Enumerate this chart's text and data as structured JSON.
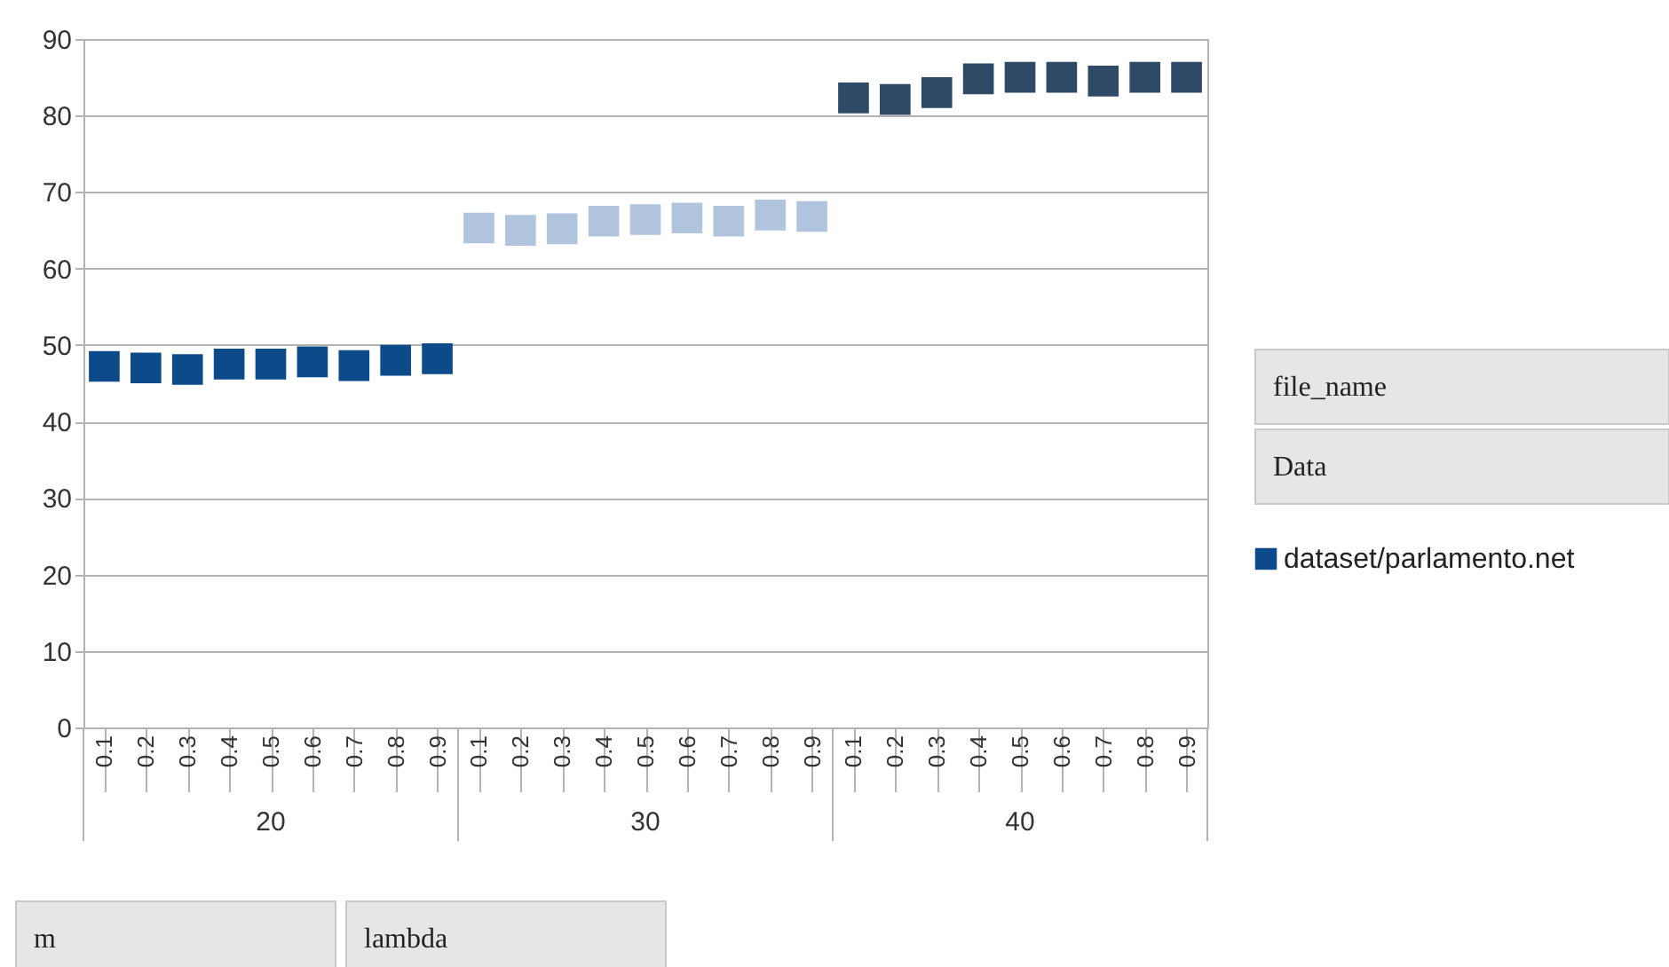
{
  "chart_data": {
    "type": "scatter",
    "categories": [
      "0.1",
      "0.2",
      "0.3",
      "0.4",
      "0.5",
      "0.6",
      "0.7",
      "0.8",
      "0.9",
      "0.1",
      "0.2",
      "0.3",
      "0.4",
      "0.5",
      "0.6",
      "0.7",
      "0.8",
      "0.9",
      "0.1",
      "0.2",
      "0.3",
      "0.4",
      "0.5",
      "0.6",
      "0.7",
      "0.8",
      "0.9"
    ],
    "series": [
      {
        "name": "dataset/parlamento.net",
        "color": "#0d4a8a",
        "colors": [
          "#0d4a8a",
          "#0d4a8a",
          "#0d4a8a",
          "#0d4a8a",
          "#0d4a8a",
          "#0d4a8a",
          "#0d4a8a",
          "#0d4a8a",
          "#0d4a8a",
          "#b0c4de",
          "#b0c4de",
          "#b0c4de",
          "#b0c4de",
          "#b0c4de",
          "#b0c4de",
          "#b0c4de",
          "#b0c4de",
          "#b0c4de",
          "#2e4a66",
          "#2e4a66",
          "#2e4a66",
          "#2e4a66",
          "#2e4a66",
          "#2e4a66",
          "#2e4a66",
          "#2e4a66",
          "#2e4a66"
        ],
        "values": [
          47.2,
          47.0,
          46.8,
          47.5,
          47.5,
          47.8,
          47.3,
          48.0,
          48.2,
          65.3,
          65.0,
          65.2,
          66.2,
          66.4,
          66.6,
          66.2,
          67.0,
          66.8,
          82.3,
          82.1,
          83.0,
          84.8,
          85.0,
          85.0,
          84.5,
          85.0,
          85.0
        ]
      }
    ],
    "annotations": [
      "20",
      "30",
      "40",
      "file_name",
      "Data",
      "m",
      "lambda"
    ],
    "ylim": [
      0,
      90
    ],
    "yticks": [
      0,
      10,
      20,
      30,
      40,
      50,
      60,
      70,
      80,
      90
    ],
    "grid": "y",
    "legend": "right",
    "marker": "square"
  }
}
